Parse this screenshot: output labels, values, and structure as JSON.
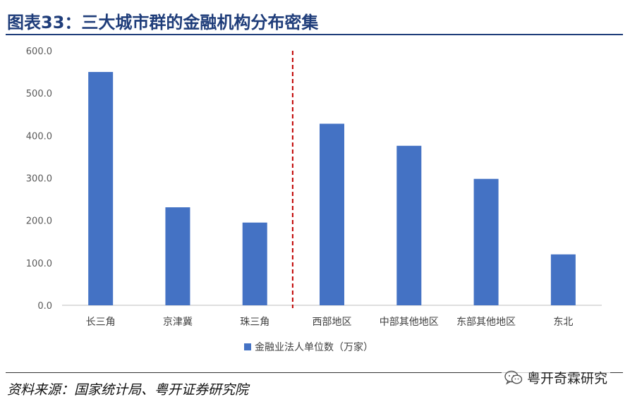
{
  "header": {
    "title": "图表33：三大城市群的金融机构分布密集"
  },
  "footer": {
    "source": "资料来源：国家统计局、粤开证券研究院",
    "watermark": "粤开奇霖研究"
  },
  "colors": {
    "bar": "#4472c4",
    "divider": "#c00000",
    "title": "#1f3d7a"
  },
  "chart_data": {
    "type": "bar",
    "categories": [
      "长三角",
      "京津冀",
      "珠三角",
      "西部地区",
      "中部其他地区",
      "东部其他地区",
      "东北"
    ],
    "series": [
      {
        "name": "金融业法人单位数（万家）",
        "values": [
          550,
          231,
          195,
          428,
          376,
          298,
          120
        ]
      }
    ],
    "ylim": [
      0,
      600
    ],
    "yticks": [
      "0.0",
      "100.0",
      "200.0",
      "300.0",
      "400.0",
      "500.0",
      "600.0"
    ],
    "grid": false,
    "legend_position": "bottom",
    "divider_after_category": 3
  }
}
